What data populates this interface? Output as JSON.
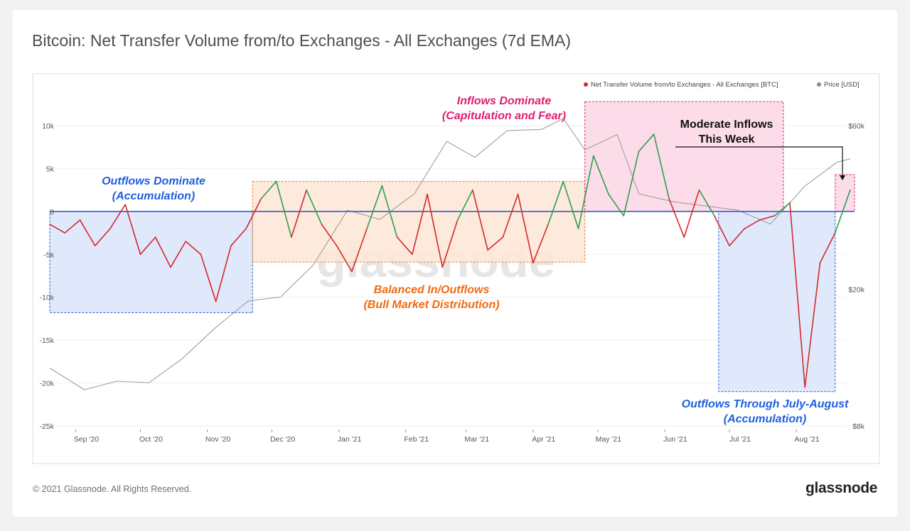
{
  "page": {
    "title": "Bitcoin: Net Transfer Volume from/to Exchanges - All Exchanges (7d EMA)",
    "copyright": "© 2021 Glassnode. All Rights Reserved.",
    "logo": "glassnode",
    "watermark": "glassnode"
  },
  "colors": {
    "inflow": "#2f9e4f",
    "outflow": "#d42a2a",
    "price": "#9e9e9e",
    "zero_line": "#3b5bd6",
    "accum_box": "#3b6fd8",
    "balanced_box": "#f08a3c",
    "inflow_box": "#e0407a"
  },
  "legend": {
    "series1": "Net Transfer Volume from/to Exchanges - All Exchanges [BTC]",
    "series2": "Price [USD]"
  },
  "annotations": {
    "a1_l1": "Outflows Dominate",
    "a1_l2": "(Accumulation)",
    "a2_l1": "Inflows Dominate",
    "a2_l2": "(Capitulation and Fear)",
    "a3_l1": "Balanced In/Outflows",
    "a3_l2": "(Bull Market Distribution)",
    "a4_l1": "Moderate Inflows",
    "a4_l2": "This Week",
    "a5_l1": "Outflows Through July-August",
    "a5_l2": "(Accumulation)"
  },
  "chart_data": {
    "type": "line",
    "title": "Bitcoin: Net Transfer Volume from/to Exchanges - All Exchanges (7d EMA)",
    "x_range": [
      "2020-08-20",
      "2021-08-28"
    ],
    "x_ticks": [
      "Sep '20",
      "Oct '20",
      "Nov '20",
      "Dec '20",
      "Jan '21",
      "Feb '21",
      "Mar '21",
      "Apr '21",
      "May '21",
      "Jun '21",
      "Jul '21",
      "Aug '21"
    ],
    "y_left": {
      "ylim": [
        -25000,
        10000
      ],
      "ticks": [
        "-25k",
        "-20k",
        "-15k",
        "-10k",
        "-5k",
        "0",
        "5k",
        "10k"
      ]
    },
    "y_right": {
      "scale": "log",
      "ticks": [
        "$8k",
        "$20k",
        "$60k"
      ]
    },
    "series": [
      {
        "name": "Net Transfer Volume from/to Exchanges - All Exchanges [BTC]",
        "axis": "left",
        "x": [
          "2020-08-20",
          "2020-08-27",
          "2020-09-03",
          "2020-09-10",
          "2020-09-17",
          "2020-09-24",
          "2020-10-01",
          "2020-10-08",
          "2020-10-15",
          "2020-10-22",
          "2020-10-29",
          "2020-11-05",
          "2020-11-12",
          "2020-11-19",
          "2020-11-26",
          "2020-12-03",
          "2020-12-10",
          "2020-12-17",
          "2020-12-24",
          "2020-12-31",
          "2021-01-07",
          "2021-01-14",
          "2021-01-21",
          "2021-01-28",
          "2021-02-04",
          "2021-02-11",
          "2021-02-18",
          "2021-02-25",
          "2021-03-04",
          "2021-03-11",
          "2021-03-18",
          "2021-03-25",
          "2021-04-01",
          "2021-04-08",
          "2021-04-15",
          "2021-04-22",
          "2021-04-29",
          "2021-05-06",
          "2021-05-13",
          "2021-05-20",
          "2021-05-27",
          "2021-06-03",
          "2021-06-10",
          "2021-06-17",
          "2021-06-24",
          "2021-07-01",
          "2021-07-08",
          "2021-07-15",
          "2021-07-22",
          "2021-07-29",
          "2021-08-05",
          "2021-08-12",
          "2021-08-19",
          "2021-08-26"
        ],
        "values": [
          -1500,
          -2500,
          -1000,
          -4000,
          -2000,
          800,
          -5000,
          -3000,
          -6500,
          -3500,
          -5000,
          -10500,
          -4000,
          -2000,
          1500,
          3500,
          -3000,
          2500,
          -1500,
          -4000,
          -7000,
          -2000,
          3000,
          -3000,
          -5000,
          2000,
          -6500,
          -1000,
          2500,
          -4500,
          -3000,
          2000,
          -6000,
          -1500,
          3500,
          -2000,
          6500,
          2000,
          -500,
          7000,
          9000,
          1500,
          -3000,
          2500,
          -500,
          -4000,
          -2000,
          -1000,
          -500,
          1000,
          -20500,
          -6000,
          -2500,
          2500
        ]
      },
      {
        "name": "Price [USD]",
        "axis": "right",
        "x": [
          "2020-08-20",
          "2020-09-05",
          "2020-09-20",
          "2020-10-05",
          "2020-10-20",
          "2020-11-05",
          "2020-11-20",
          "2020-12-05",
          "2020-12-20",
          "2021-01-05",
          "2021-01-20",
          "2021-02-05",
          "2021-02-20",
          "2021-03-05",
          "2021-03-20",
          "2021-04-05",
          "2021-04-15",
          "2021-04-25",
          "2021-05-10",
          "2021-05-20",
          "2021-06-05",
          "2021-06-20",
          "2021-07-05",
          "2021-07-20",
          "2021-08-05",
          "2021-08-20",
          "2021-08-26"
        ],
        "values": [
          11800,
          10200,
          10800,
          10700,
          12500,
          15500,
          18500,
          19000,
          23500,
          34000,
          32000,
          38000,
          54000,
          48500,
          58000,
          58500,
          63000,
          51000,
          56500,
          38000,
          36000,
          35000,
          34000,
          31000,
          40000,
          47000,
          48000
        ]
      }
    ]
  }
}
